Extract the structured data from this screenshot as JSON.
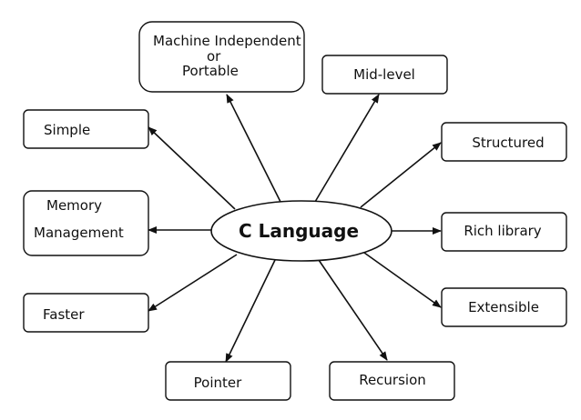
{
  "diagram": {
    "center": "C Language",
    "nodes": {
      "portable": [
        "Machine Independent",
        "or",
        "Portable"
      ],
      "mid_level": "Mid-level",
      "simple": "Simple",
      "structured": "Structured",
      "memory_management": [
        "Memory",
        "Management"
      ],
      "rich_library": "Rich library",
      "faster": "Faster",
      "extensible": "Extensible",
      "pointer": "Pointer",
      "recursion": "Recursion"
    }
  }
}
